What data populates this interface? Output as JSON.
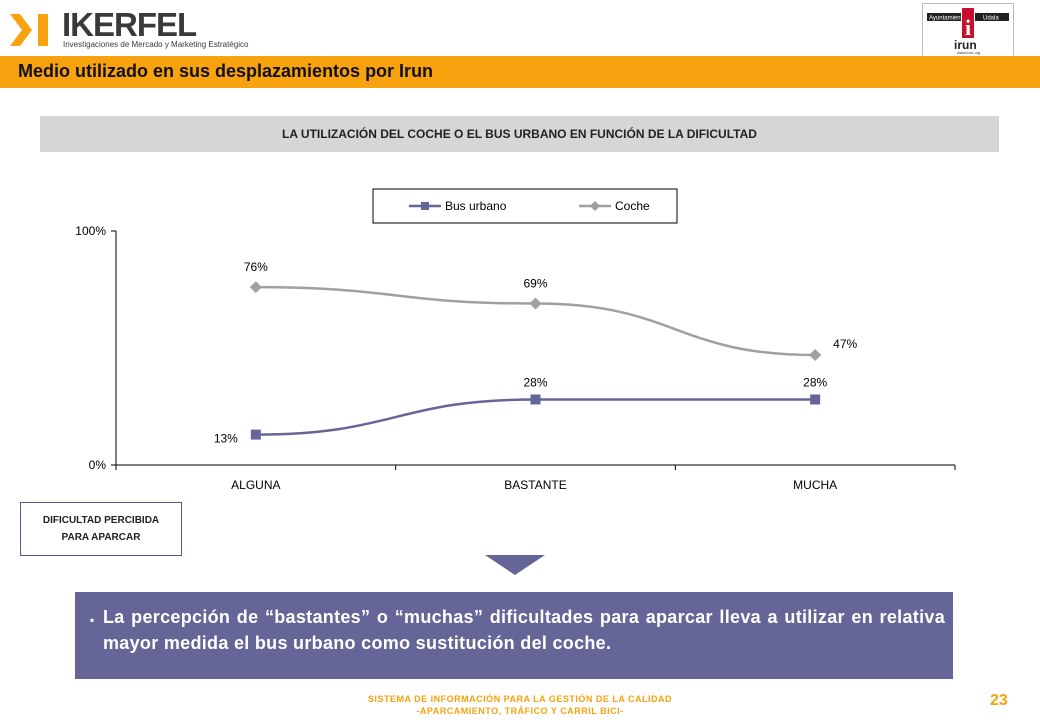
{
  "header": {
    "logo_name": "IKERFEL",
    "logo_tagline": "Investigaciones de Mercado y Marketing Estratégico",
    "logo_mark_icon": "ikerfel-chevron-logo-icon",
    "irun_logo": {
      "text_top_left": "Ayuntamiento",
      "text_top_right": "Udala",
      "name": "irun",
      "url": "www.irun.org"
    }
  },
  "title": "Medio utilizado en sus desplazamientos por Irun",
  "subtitle": "LA UTILIZACIÓN DEL COCHE O EL BUS URBANO EN FUNCIÓN DE LA DIFICULTAD",
  "chart_data": {
    "type": "line",
    "categories": [
      "ALGUNA",
      "BASTANTE",
      "MUCHA"
    ],
    "series": [
      {
        "name": "Bus urbano",
        "values": [
          13,
          28,
          28
        ],
        "labels": [
          "13%",
          "28%",
          "28%"
        ],
        "color": "#656697",
        "marker": "square"
      },
      {
        "name": "Coche",
        "values": [
          76,
          69,
          47
        ],
        "labels": [
          "76%",
          "69%",
          "47%"
        ],
        "color": "#a0a0a0",
        "marker": "diamond"
      }
    ],
    "ylim": [
      0,
      100
    ],
    "yticks": [
      "0%",
      "100%"
    ],
    "legend": "top-center",
    "grid": false
  },
  "xaxis_box": {
    "line1": "DIFICULTAD PERCIBIDA",
    "line2": "PARA APARCAR"
  },
  "note": "La percepción de “bastantes” o “muchas” dificultades para aparcar lleva a utilizar en relativa mayor medida el bus urbano como sustitución del coche.",
  "footer": {
    "line1": "SISTEMA DE INFORMACIÓN PARA LA GESTIÓN DE LA CALIDAD",
    "line2": "-APARCAMIENTO, TRÁFICO Y CARRIL BICI-"
  },
  "page_number": "23",
  "colors": {
    "accent_orange": "#f7a20e",
    "note_bg": "#656697",
    "subtitle_bg": "#d6d6d6"
  }
}
